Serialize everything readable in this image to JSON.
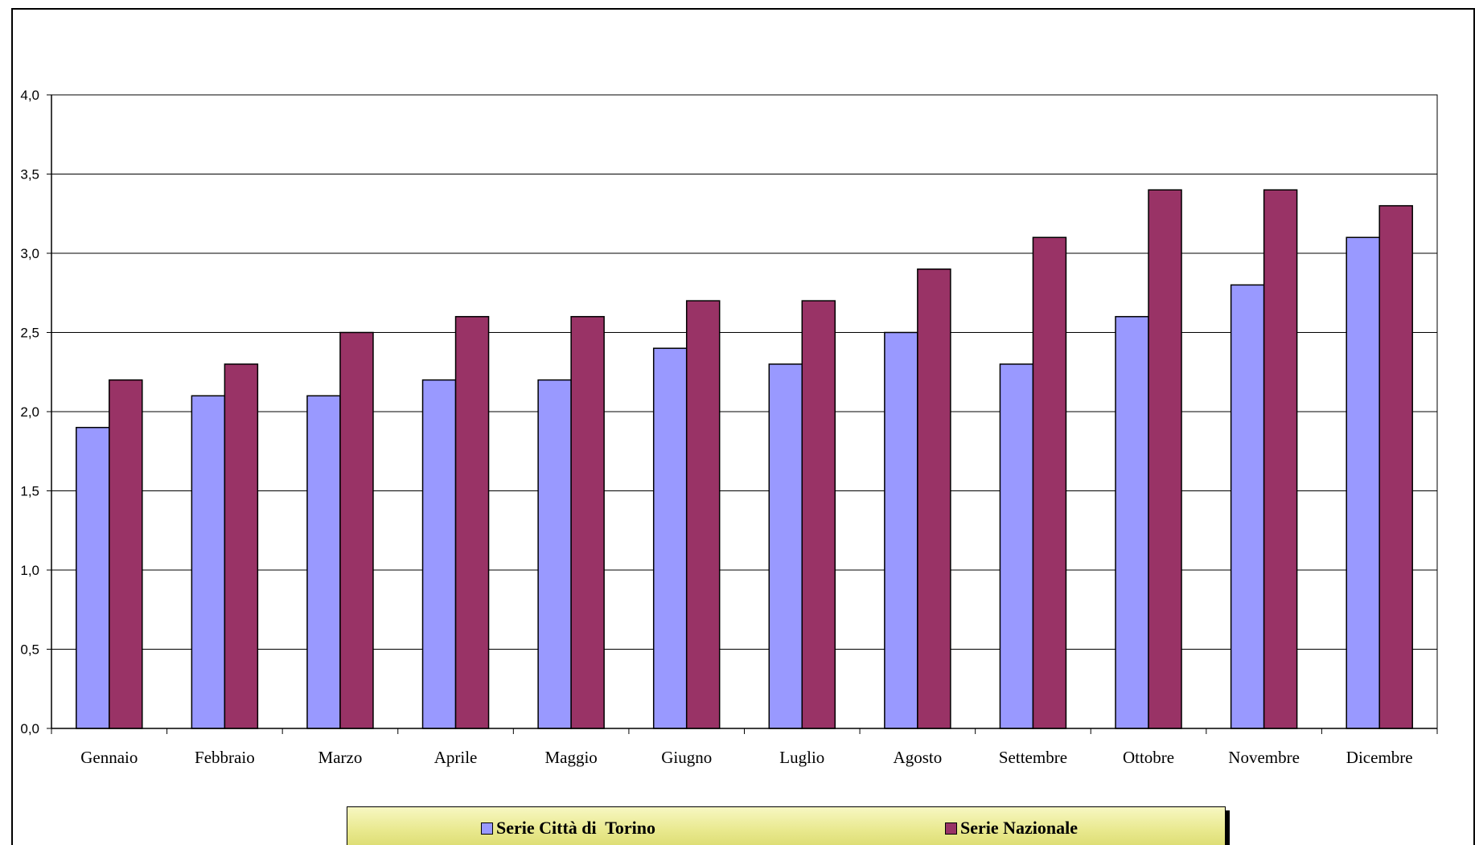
{
  "chart_data": {
    "type": "bar",
    "title": "",
    "xlabel": "",
    "ylabel": "",
    "categories": [
      "Gennaio",
      "Febbraio",
      "Marzo",
      "Aprile",
      "Maggio",
      "Giugno",
      "Luglio",
      "Agosto",
      "Settembre",
      "Ottobre",
      "Novembre",
      "Dicembre"
    ],
    "series": [
      {
        "name": "Serie Città di  Torino",
        "color": "#9999ff",
        "values": [
          1.9,
          2.1,
          2.1,
          2.2,
          2.2,
          2.4,
          2.3,
          2.5,
          2.3,
          2.6,
          2.8,
          3.1
        ]
      },
      {
        "name": "Serie Nazionale",
        "color": "#993366",
        "values": [
          2.2,
          2.3,
          2.5,
          2.6,
          2.6,
          2.7,
          2.7,
          2.9,
          3.1,
          3.4,
          3.4,
          3.3
        ]
      }
    ],
    "ylim": [
      0,
      4
    ],
    "yticks": [
      "0,0",
      "0,5",
      "1,0",
      "1,5",
      "2,0",
      "2,5",
      "3,0",
      "3,5",
      "4,0"
    ],
    "grid": true,
    "legend_position": "bottom"
  }
}
